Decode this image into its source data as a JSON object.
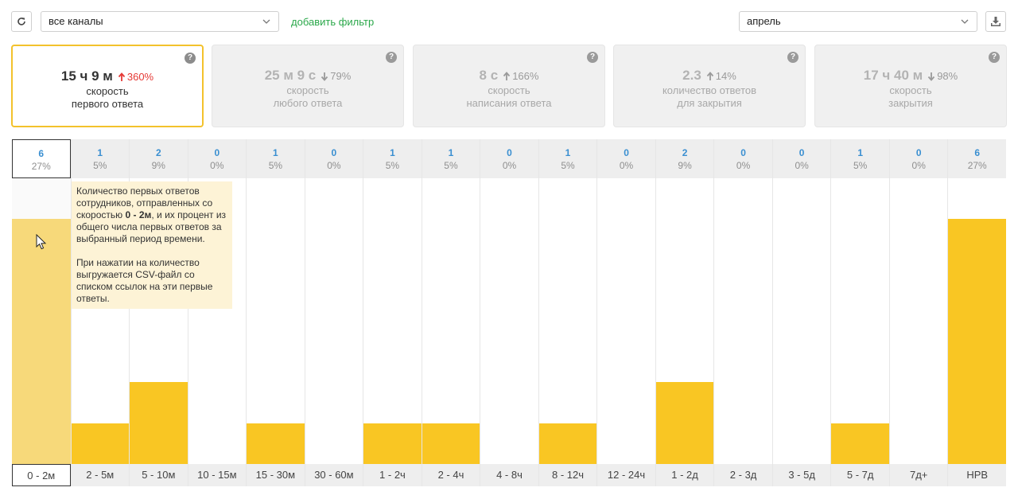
{
  "toolbar": {
    "refresh_icon": "refresh-icon",
    "channel_select": {
      "value": "все каналы"
    },
    "add_filter_label": "добавить фильтр",
    "period_select": {
      "value": "апрель"
    },
    "download_icon": "download-icon"
  },
  "colors": {
    "accent": "#f9c623",
    "count_blue": "#3a8fd1",
    "link_green": "#2aa84a",
    "up_red": "#e53935"
  },
  "cards": [
    {
      "value": "15 ч 9 м",
      "trend": "up",
      "percent": "360%",
      "label_line1": "скорость",
      "label_line2": "первого ответа",
      "active": true
    },
    {
      "value": "25 м 9 с",
      "trend": "down",
      "percent": "79%",
      "label_line1": "скорость",
      "label_line2": "любого ответа",
      "active": false
    },
    {
      "value": "8 с",
      "trend": "up",
      "percent": "166%",
      "label_line1": "скорость",
      "label_line2": "написания ответа",
      "active": false
    },
    {
      "value": "2.3",
      "trend": "up",
      "percent": "14%",
      "label_line1": "количество ответов",
      "label_line2": "для закрытия",
      "active": false
    },
    {
      "value": "17 ч 40 м",
      "trend": "down",
      "percent": "98%",
      "label_line1": "скорость",
      "label_line2": "закрытия",
      "active": false
    }
  ],
  "chart_data": {
    "type": "bar",
    "categories": [
      "0 - 2м",
      "2 - 5м",
      "5 - 10м",
      "10 - 15м",
      "15 - 30м",
      "30 - 60м",
      "1 - 2ч",
      "2 - 4ч",
      "4 - 8ч",
      "8 - 12ч",
      "12 - 24ч",
      "1 - 2д",
      "2 - 3д",
      "3 - 5д",
      "5 - 7д",
      "7д+",
      "НРВ"
    ],
    "values": [
      6,
      1,
      2,
      0,
      1,
      0,
      1,
      1,
      0,
      1,
      0,
      2,
      0,
      0,
      1,
      0,
      6
    ],
    "percents": [
      "27%",
      "5%",
      "9%",
      "0%",
      "5%",
      "0%",
      "5%",
      "5%",
      "0%",
      "5%",
      "0%",
      "9%",
      "0%",
      "0%",
      "5%",
      "0%",
      "27%"
    ],
    "ylim": [
      0,
      7
    ],
    "selected_index": 0,
    "grid": false
  },
  "tooltip": {
    "part1": "Количество первых ответов сотрудников, отправленных со скоростью ",
    "range": "0 - 2м",
    "part2": ", и их процент из общего числа первых ответов за выбранный период времени.",
    "paragraph2": "При нажатии на количество выгружается CSV-файл со списком ссылок на эти первые ответы."
  }
}
